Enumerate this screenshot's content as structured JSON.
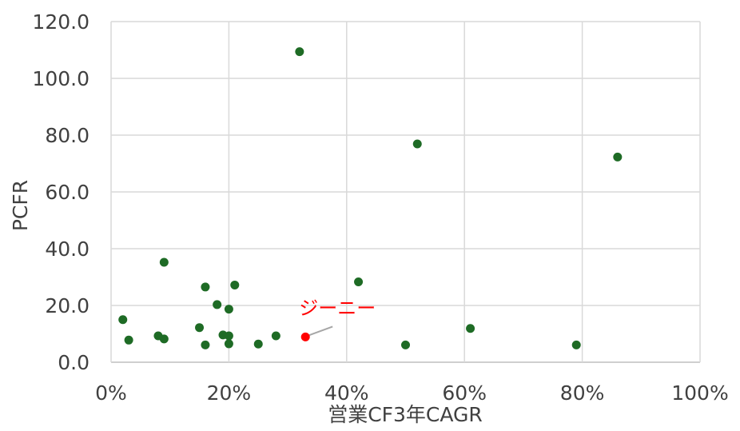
{
  "chart_data": {
    "type": "scatter",
    "xlabel": "営業CF3年CAGR",
    "ylabel": "PCFR",
    "xlim": [
      0,
      100
    ],
    "ylim": [
      0,
      120
    ],
    "xticks": [
      0,
      20,
      40,
      60,
      80,
      100
    ],
    "yticks": [
      0,
      20,
      40,
      60,
      80,
      100,
      120
    ],
    "xtick_labels": [
      "0%",
      "20%",
      "40%",
      "60%",
      "80%",
      "100%"
    ],
    "ytick_labels": [
      "0.0",
      "20.0",
      "40.0",
      "60.0",
      "80.0",
      "100.0",
      "120.0"
    ],
    "grid": true,
    "colors": {
      "points": "#1e6b25",
      "highlight": "#ff0000",
      "grid": "#d9d9d9",
      "axis": "#bfbfbf",
      "leader": "#a6a6a6"
    },
    "series": [
      {
        "points": [
          {
            "x": 2,
            "y": 15.0
          },
          {
            "x": 3,
            "y": 7.8
          },
          {
            "x": 8,
            "y": 9.3
          },
          {
            "x": 9,
            "y": 8.2
          },
          {
            "x": 9,
            "y": 35.2
          },
          {
            "x": 15,
            "y": 12.2
          },
          {
            "x": 16,
            "y": 6.1
          },
          {
            "x": 16,
            "y": 26.5
          },
          {
            "x": 18,
            "y": 20.3
          },
          {
            "x": 19,
            "y": 9.6
          },
          {
            "x": 20,
            "y": 9.3
          },
          {
            "x": 20,
            "y": 18.7
          },
          {
            "x": 20,
            "y": 6.5
          },
          {
            "x": 21,
            "y": 27.2
          },
          {
            "x": 25,
            "y": 6.4
          },
          {
            "x": 28,
            "y": 9.3
          },
          {
            "x": 32,
            "y": 109.4
          },
          {
            "x": 42,
            "y": 28.3
          },
          {
            "x": 50,
            "y": 6.1
          },
          {
            "x": 52,
            "y": 76.9
          },
          {
            "x": 61,
            "y": 11.9
          },
          {
            "x": 79,
            "y": 6.1
          },
          {
            "x": 86,
            "y": 72.3
          }
        ]
      }
    ],
    "highlight": {
      "label": "ジーニー",
      "x": 33,
      "y": 8.9
    }
  }
}
